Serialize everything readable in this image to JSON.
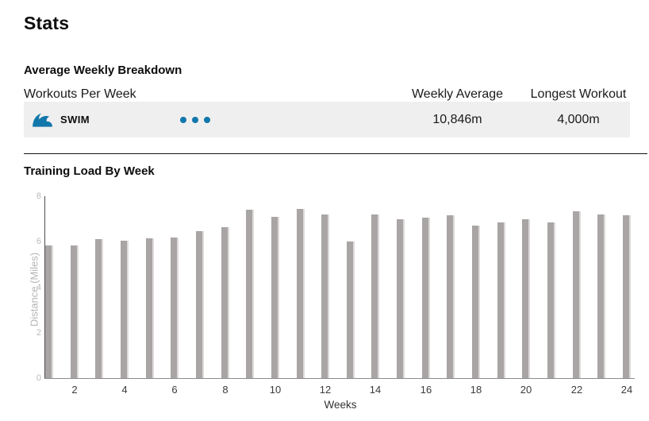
{
  "page_title": "Stats",
  "colors": {
    "accent_blue": "#1277ab",
    "row_bg": "#f0efef",
    "bar_gray": "#aaa5a5",
    "bar_bevel": "#ddd9d9"
  },
  "breakdown": {
    "section_title": "Average Weekly Breakdown",
    "columns": {
      "main": "Workouts Per Week",
      "weekly_average": "Weekly Average",
      "longest_workout": "Longest Workout"
    },
    "rows": [
      {
        "sport": "SWIM",
        "icon": "swim-wave-icon",
        "workouts_per_week": 3,
        "weekly_average": "10,846m",
        "longest_workout": "4,000m"
      }
    ]
  },
  "chart_section": {
    "title": "Training Load By Week"
  },
  "chart_data": {
    "type": "bar",
    "title": "Training Load By Week",
    "xlabel": "Weeks",
    "ylabel": "Distance (Miles)",
    "x": [
      1,
      2,
      3,
      4,
      5,
      6,
      7,
      8,
      9,
      10,
      11,
      12,
      13,
      14,
      15,
      16,
      17,
      18,
      19,
      20,
      21,
      22,
      23,
      24
    ],
    "values": [
      5.85,
      5.85,
      6.1,
      6.05,
      6.15,
      6.2,
      6.45,
      6.65,
      7.4,
      7.1,
      7.45,
      7.2,
      6.0,
      7.2,
      7.0,
      7.05,
      7.15,
      6.7,
      6.85,
      7.0,
      6.85,
      7.35,
      7.2,
      7.15
    ],
    "ylim": [
      0,
      8
    ],
    "yticks": [
      0,
      2,
      4,
      6,
      8
    ],
    "xticks": [
      2,
      4,
      6,
      8,
      10,
      12,
      14,
      16,
      18,
      20,
      22,
      24
    ],
    "grid": false,
    "legend": null,
    "bar_color": "#aaa5a5"
  }
}
